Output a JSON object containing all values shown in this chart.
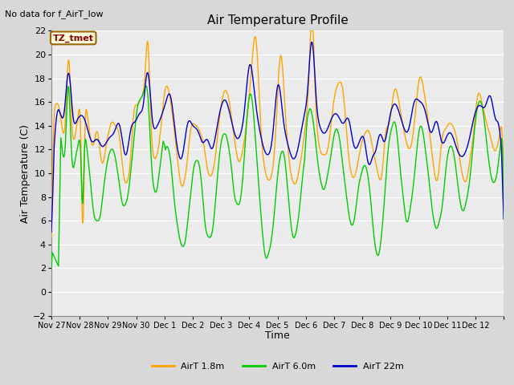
{
  "title": "Air Temperature Profile",
  "subtitle": "No data for f_AirT_low",
  "xlabel": "Time",
  "ylabel": "Air Temperature (C)",
  "ylim": [
    -2,
    22
  ],
  "yticks": [
    -2,
    0,
    2,
    4,
    6,
    8,
    10,
    12,
    14,
    16,
    18,
    20,
    22
  ],
  "annotation_text": "TZ_tmet",
  "annotation_color": "#8B0000",
  "annotation_bg": "#FFFFE0",
  "annotation_border": "#996600",
  "line_colors": {
    "AirT_1.8m": "#FFA500",
    "AirT_6.0m": "#00CC00",
    "AirT_22m": "#0000CC"
  },
  "legend_labels": [
    "AirT 1.8m",
    "AirT 6.0m",
    "AirT 22m"
  ],
  "bg_color": "#D8D8D8",
  "plot_bg_color": "#EBEBEB",
  "grid_color": "#FFFFFF",
  "n_points": 960,
  "x_start_day": 331,
  "x_end_day": 347,
  "xtick_days": [
    331,
    332,
    333,
    334,
    335,
    336,
    337,
    338,
    339,
    340,
    341,
    342,
    343,
    344,
    345,
    346,
    347
  ],
  "xtick_labels": [
    "Nov 27",
    "Nov 28",
    "Nov 29",
    "Nov 30",
    "Dec 1",
    "Dec 2",
    "Dec 3",
    "Dec 4",
    "Dec 5",
    "Dec 6",
    "Dec 7",
    "Dec 8",
    "Dec 9",
    "Dec 10",
    "Dec 11",
    "Dec 12",
    ""
  ],
  "linewidth": 1.0,
  "figsize": [
    6.4,
    4.8
  ],
  "dpi": 100
}
